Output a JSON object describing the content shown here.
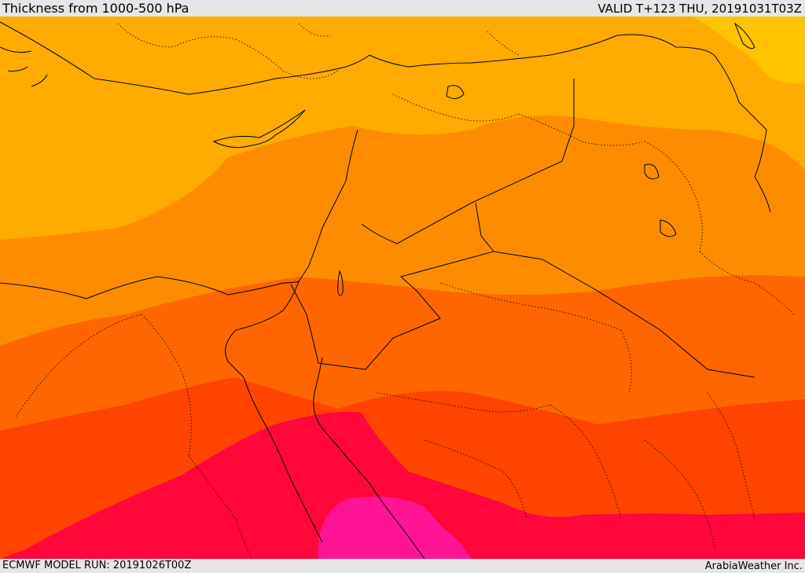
{
  "header": {
    "title": "Thickness from 1000-500 hPa",
    "valid": "VALID T+123 THU, 20191031T03Z"
  },
  "footer": {
    "model_run": "ECMWF MODEL RUN: 20191026T00Z",
    "credit": "ArabiaWeather Inc."
  },
  "map": {
    "field": "1000-500 hPa thickness",
    "shading_bands": [
      {
        "name": "band-1",
        "color": "#ffc300"
      },
      {
        "name": "band-2",
        "color": "#ffab00"
      },
      {
        "name": "band-3",
        "color": "#ff8c00"
      },
      {
        "name": "band-4",
        "color": "#ff6600"
      },
      {
        "name": "band-5",
        "color": "#ff4400"
      },
      {
        "name": "band-6",
        "color": "#ff073a"
      },
      {
        "name": "band-7",
        "color": "#ff1493"
      }
    ],
    "border_color": "#000000"
  }
}
